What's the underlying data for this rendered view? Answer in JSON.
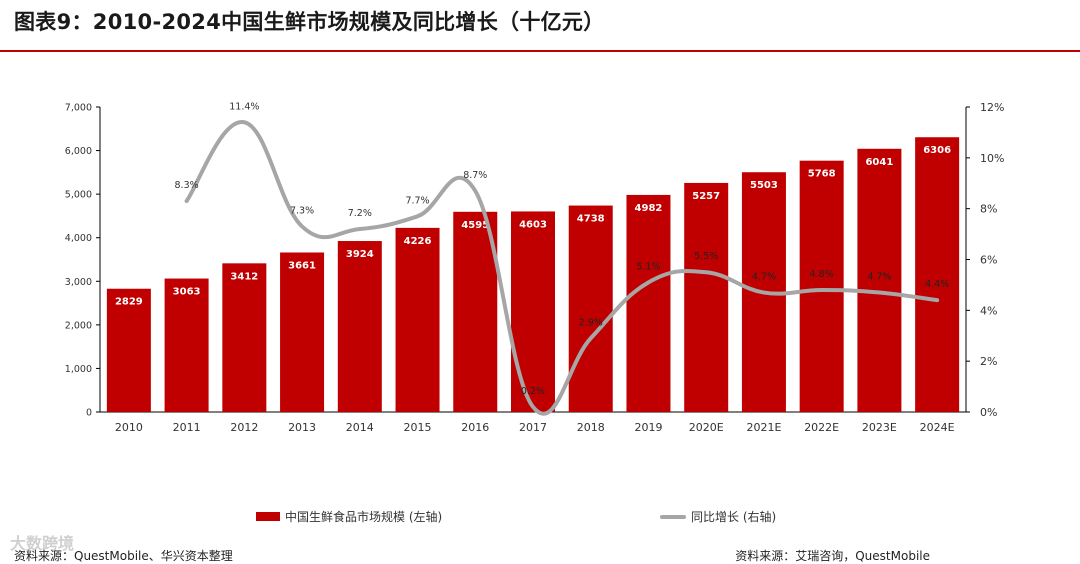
{
  "page": {
    "title": "图表9：2010-2024中国生鲜市场规模及同比增长（十亿元）",
    "source_left": "资料来源：QuestMobile、华兴资本整理",
    "source_right": "资料来源：艾瑞咨询，QuestMobile",
    "watermark": "大数跨境"
  },
  "colors": {
    "bar": "#c00000",
    "line": "#a6a6a6",
    "title_rule": "#c00000"
  },
  "chart_data": {
    "type": "bar",
    "categories": [
      "2010",
      "2011",
      "2012",
      "2013",
      "2014",
      "2015",
      "2016",
      "2017",
      "2018",
      "2019",
      "2020E",
      "2021E",
      "2022E",
      "2023E",
      "2024E"
    ],
    "series": [
      {
        "name": "中国生鲜食品市场规模 (左轴)",
        "type": "bar",
        "axis": "left",
        "values": [
          2829,
          3063,
          3412,
          3661,
          3924,
          4226,
          4595,
          4603,
          4738,
          4982,
          5257,
          5503,
          5768,
          6041,
          6306
        ],
        "labels": [
          "2829",
          "3063",
          "3412",
          "3661",
          "3924",
          "4226",
          "4595",
          "4603",
          "4738",
          "4982",
          "5257",
          "5503",
          "5768",
          "6041",
          "6306"
        ]
      },
      {
        "name": "同比增长 (右轴)",
        "type": "line",
        "axis": "right",
        "values": [
          null,
          8.3,
          11.4,
          7.3,
          7.2,
          7.7,
          8.7,
          0.2,
          2.9,
          5.1,
          5.5,
          4.7,
          4.8,
          4.7,
          4.4
        ],
        "labels": [
          "",
          "8.3%",
          "11.4%",
          "7.3%",
          "7.2%",
          "7.7%",
          "8.7%",
          "0.2%",
          "2.9%",
          "5.1%",
          "5.5%",
          "4.7%",
          "4.8%",
          "4.7%",
          "4.4%"
        ]
      }
    ],
    "ylim_left": [
      0,
      7000
    ],
    "ylim_right": [
      0,
      12
    ],
    "yticks_left": [
      "0",
      "1,000",
      "2,000",
      "3,000",
      "4,000",
      "5,000",
      "6,000",
      "7,000"
    ],
    "yticks_right": [
      "0%",
      "2%",
      "4%",
      "6%",
      "8%",
      "10%",
      "12%"
    ],
    "grid": false,
    "legend_position": "bottom"
  }
}
